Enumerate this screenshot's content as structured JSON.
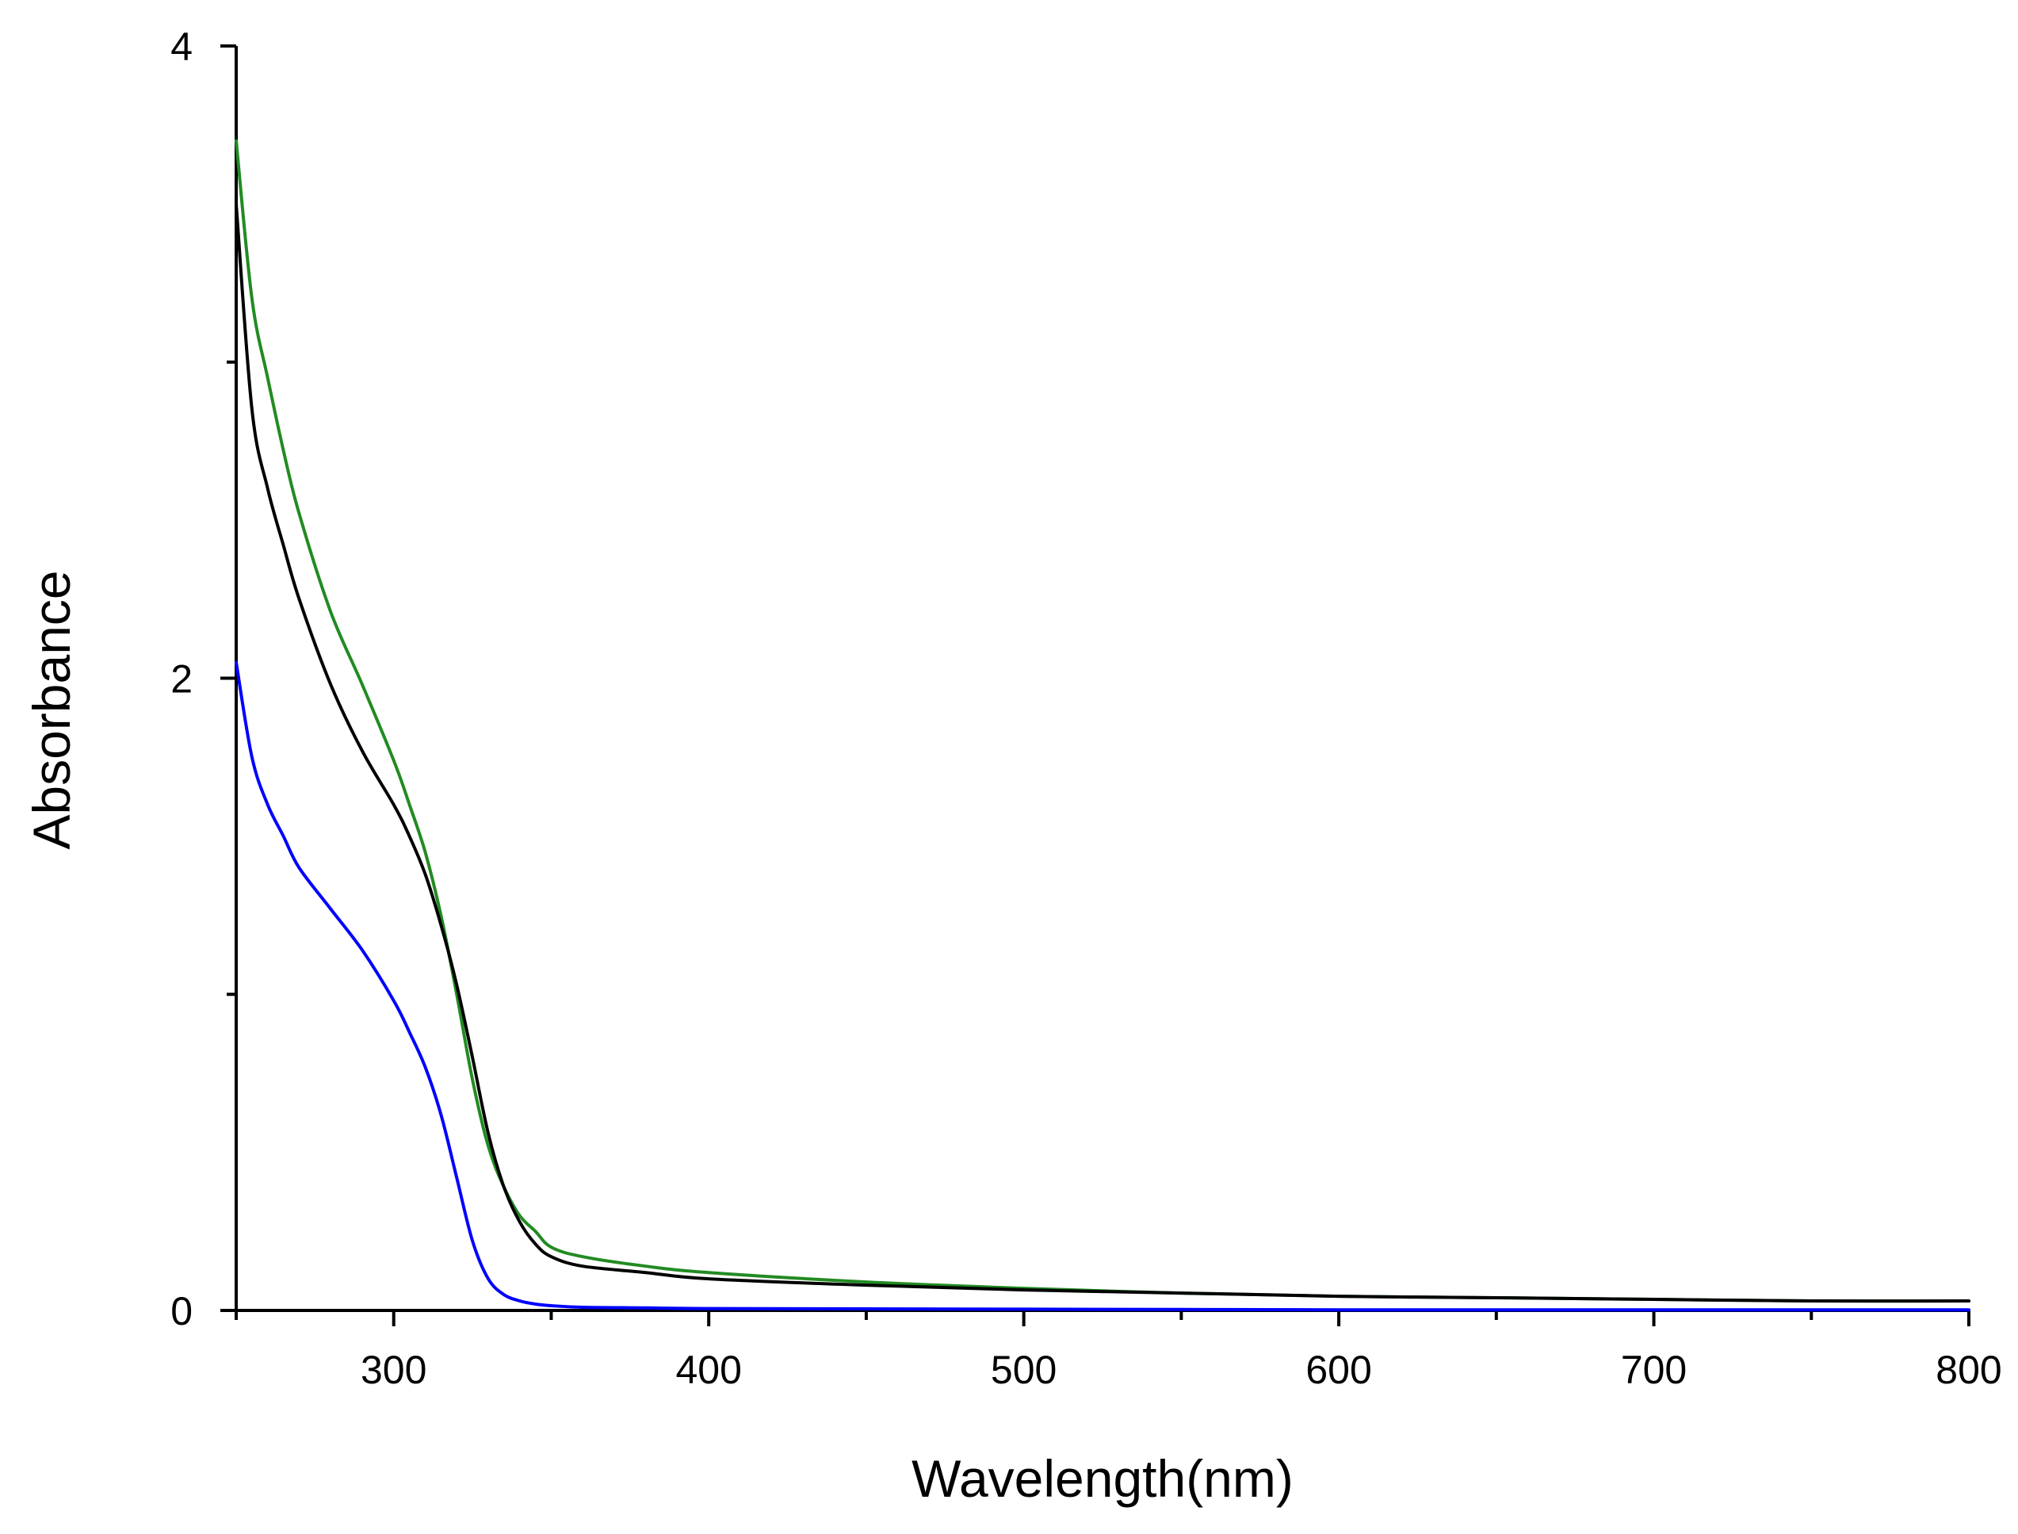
{
  "chart_data": {
    "type": "line",
    "title": "",
    "xlabel": "Wavelength(nm)",
    "ylabel": "Absorbance",
    "xlim": [
      250,
      800
    ],
    "ylim": [
      0,
      4
    ],
    "x_ticks": [
      300,
      400,
      500,
      600,
      700,
      800
    ],
    "x_minor_ticks": [
      250,
      350,
      450,
      550,
      650,
      750
    ],
    "y_ticks": [
      0,
      2,
      4
    ],
    "y_minor_ticks": [
      1,
      3
    ],
    "grid": false,
    "legend": "none",
    "series": [
      {
        "color": "#228B22",
        "x": [
          250,
          255,
          260,
          265,
          270,
          280,
          290,
          300,
          305,
          310,
          315,
          320,
          325,
          330,
          335,
          340,
          345,
          350,
          360,
          380,
          400,
          450,
          500,
          550,
          600,
          650,
          700,
          750,
          800
        ],
        "y": [
          3.7,
          3.2,
          2.95,
          2.72,
          2.52,
          2.21,
          1.98,
          1.74,
          1.6,
          1.45,
          1.25,
          1.0,
          0.73,
          0.52,
          0.39,
          0.3,
          0.25,
          0.2,
          0.17,
          0.14,
          0.12,
          0.09,
          0.07,
          0.055,
          0.045,
          0.04,
          0.035,
          0.03,
          0.03
        ]
      },
      {
        "color": "#000000",
        "x": [
          250,
          255,
          260,
          265,
          270,
          280,
          290,
          300,
          305,
          310,
          315,
          320,
          325,
          330,
          335,
          340,
          345,
          350,
          360,
          380,
          400,
          450,
          500,
          550,
          600,
          650,
          700,
          750,
          800
        ],
        "y": [
          3.5,
          2.85,
          2.6,
          2.42,
          2.25,
          1.98,
          1.77,
          1.6,
          1.5,
          1.38,
          1.22,
          1.03,
          0.8,
          0.56,
          0.39,
          0.28,
          0.21,
          0.17,
          0.14,
          0.12,
          0.1,
          0.08,
          0.065,
          0.055,
          0.045,
          0.04,
          0.035,
          0.03,
          0.03
        ]
      },
      {
        "color": "#0000FF",
        "x": [
          250,
          255,
          260,
          265,
          270,
          280,
          290,
          300,
          305,
          310,
          315,
          320,
          325,
          330,
          335,
          340,
          345,
          350,
          360,
          380,
          400,
          450,
          500,
          550,
          600,
          700,
          800
        ],
        "y": [
          2.05,
          1.75,
          1.6,
          1.5,
          1.4,
          1.27,
          1.14,
          0.98,
          0.88,
          0.77,
          0.62,
          0.42,
          0.22,
          0.1,
          0.05,
          0.03,
          0.02,
          0.015,
          0.01,
          0.008,
          0.006,
          0.005,
          0.004,
          0.003,
          0.002,
          0.002,
          0.002
        ]
      }
    ]
  }
}
